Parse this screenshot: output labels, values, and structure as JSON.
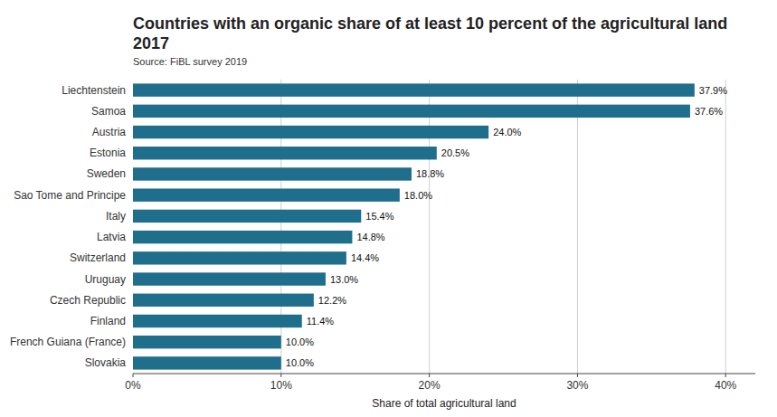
{
  "chart_data": {
    "type": "bar",
    "orientation": "horizontal",
    "title": "Countries with an organic share of at least 10 percent of the agricultural land 2017",
    "annotations": [
      "Source: FiBL survey 2019"
    ],
    "xlabel": "Share of total agricultural land",
    "categories": [
      "Slovakia",
      "French Guiana (France)",
      "Finland",
      "Czech Republic",
      "Uruguay",
      "Switzerland",
      "Latvia",
      "Italy",
      "Sao Tome and Principe",
      "Sweden",
      "Estonia",
      "Austria",
      "Samoa",
      "Liechtenstein"
    ],
    "values": [
      10.0,
      10.0,
      11.4,
      12.2,
      13.0,
      14.4,
      14.8,
      15.4,
      18.0,
      18.8,
      20.5,
      24.0,
      37.6,
      37.9
    ],
    "value_labels": [
      "10.0%",
      "10.0%",
      "11.4%",
      "12.2%",
      "13.0%",
      "14.4%",
      "14.8%",
      "15.4%",
      "18.0%",
      "18.8%",
      "20.5%",
      "24.0%",
      "37.6%",
      "37.9%"
    ],
    "data_labels": true,
    "color": "#1f6e8c",
    "xlim": [
      0,
      42
    ],
    "xticks": [
      {
        "value": 0,
        "label": "0%"
      },
      {
        "value": 10,
        "label": "10%"
      },
      {
        "value": 20,
        "label": "20%"
      },
      {
        "value": 30,
        "label": "30%"
      },
      {
        "value": 40,
        "label": "40%"
      }
    ],
    "grid": true
  }
}
